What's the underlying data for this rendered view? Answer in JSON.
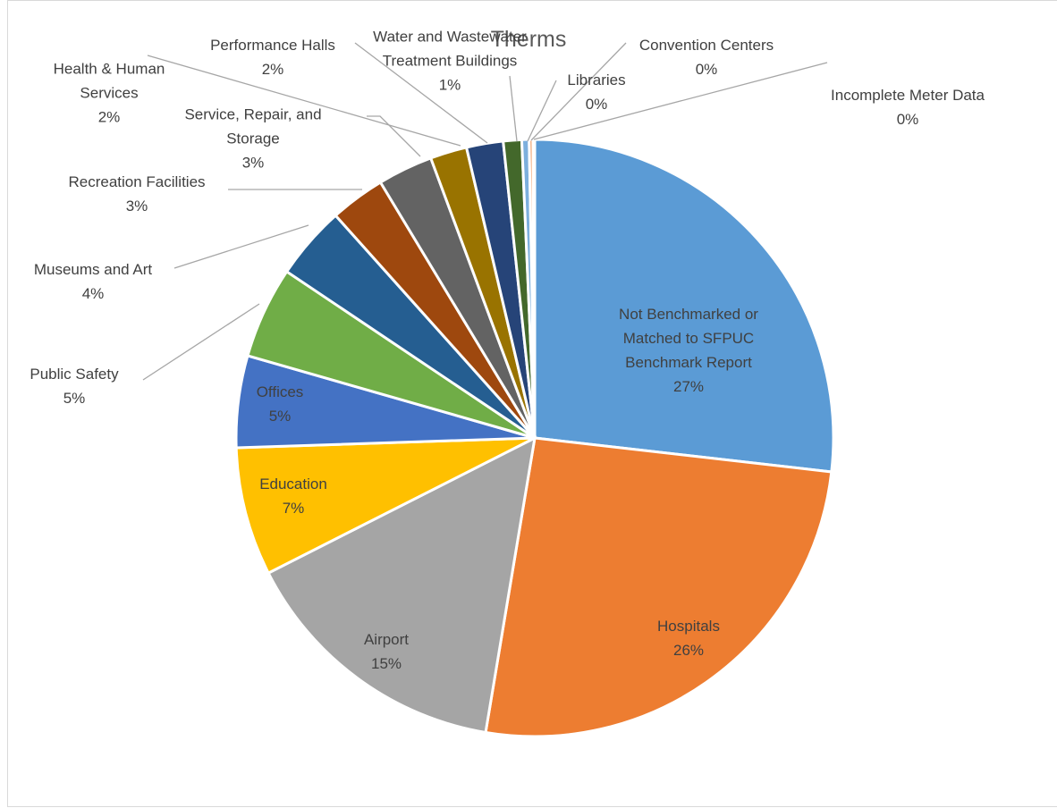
{
  "chart_data": {
    "type": "pie",
    "title": "Therms",
    "categories": [
      "Not Benchmarked or Matched to SFPUC Benchmark Report",
      "Hospitals",
      "Airport",
      "Education",
      "Offices",
      "Public Safety",
      "Museums and Art",
      "Recreation Facilities",
      "Service, Repair, and Storage",
      "Health & Human Services",
      "Performance Halls",
      "Water and Wastewater Treatment Buildings",
      "Libraries",
      "Convention Centers",
      "Incomplete Meter Data"
    ],
    "values": [
      27,
      26,
      15,
      7,
      5,
      5,
      4,
      3,
      3,
      2,
      2,
      1,
      0.4,
      0.2,
      0.1
    ],
    "value_labels": [
      "27%",
      "26%",
      "15%",
      "7%",
      "5%",
      "5%",
      "4%",
      "3%",
      "3%",
      "2%",
      "2%",
      "1%",
      "0%",
      "0%",
      "0%"
    ],
    "colors": [
      "#5b9bd5",
      "#ed7d31",
      "#a5a5a5",
      "#ffc000",
      "#4472c4",
      "#70ad47",
      "#255e91",
      "#9e480e",
      "#636363",
      "#997300",
      "#264478",
      "#43682b",
      "#7cafdd",
      "#f1975a",
      "#b7b7b7"
    ]
  }
}
